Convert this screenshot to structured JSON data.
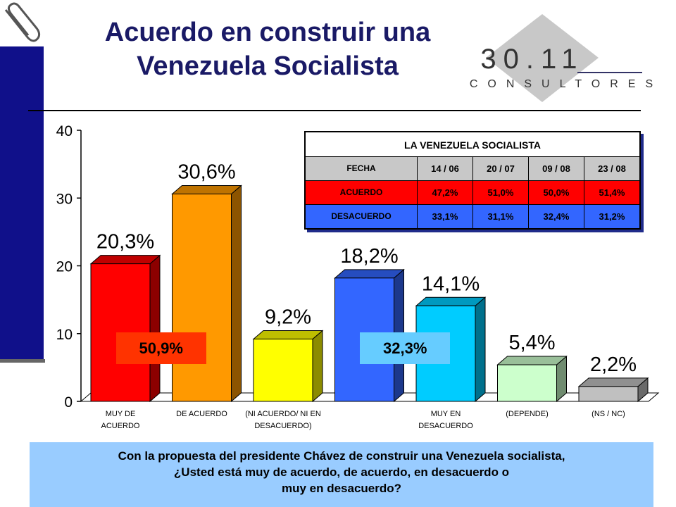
{
  "header": {
    "title_lines": [
      "Acuerdo en construir una",
      "Venezuela Socialista"
    ]
  },
  "logo": {
    "number": "30.11",
    "text": "CONSULTORES"
  },
  "chart_data": {
    "type": "bar",
    "categories": [
      "MUY DE ACUERDO",
      "DE ACUERDO",
      "(NI ACUERDO/ NI EN DESACUERDO)",
      null,
      "MUY EN DESACUERDO",
      "(DEPENDE)",
      "(NS / NC)"
    ],
    "values": [
      20.3,
      30.6,
      9.2,
      18.2,
      14.1,
      5.4,
      2.2
    ],
    "value_labels": [
      "20,3%",
      "30,6%",
      "9,2%",
      "18,2%",
      "14,1%",
      "5,4%",
      "2,2%"
    ],
    "colors": [
      "#ff0000",
      "#ff9900",
      "#ffff00",
      "#3366ff",
      "#00ccff",
      "#ccffcc",
      "#c0c0c0"
    ],
    "ylim": [
      0,
      40
    ],
    "yticks": [
      0,
      10,
      20,
      30,
      40
    ],
    "annotations": [
      {
        "text": "50,9%",
        "color": "#ff3300"
      },
      {
        "text": "32,3%",
        "color": "#66ccff"
      }
    ]
  },
  "table": {
    "title": "LA  VENEZUELA  SOCIALISTA",
    "header": [
      "FECHA",
      "14 / 06",
      "20 / 07",
      "09 / 08",
      "23 / 08"
    ],
    "rows": [
      [
        "ACUERDO",
        "47,2%",
        "51,0%",
        "50,0%",
        "51,4%"
      ],
      [
        "DESACUERDO",
        "33,1%",
        "31,1%",
        "32,4%",
        "31,2%"
      ]
    ],
    "row_colors": [
      "#ff0000",
      "#3366ff"
    ]
  },
  "footer": {
    "lines": [
      "Con la propuesta del presidente Chávez de construir una Venezuela socialista,",
      "¿Usted  está  muy de acuerdo,  de acuerdo,  en desacuerdo  o",
      "muy en desacuerdo?"
    ]
  }
}
